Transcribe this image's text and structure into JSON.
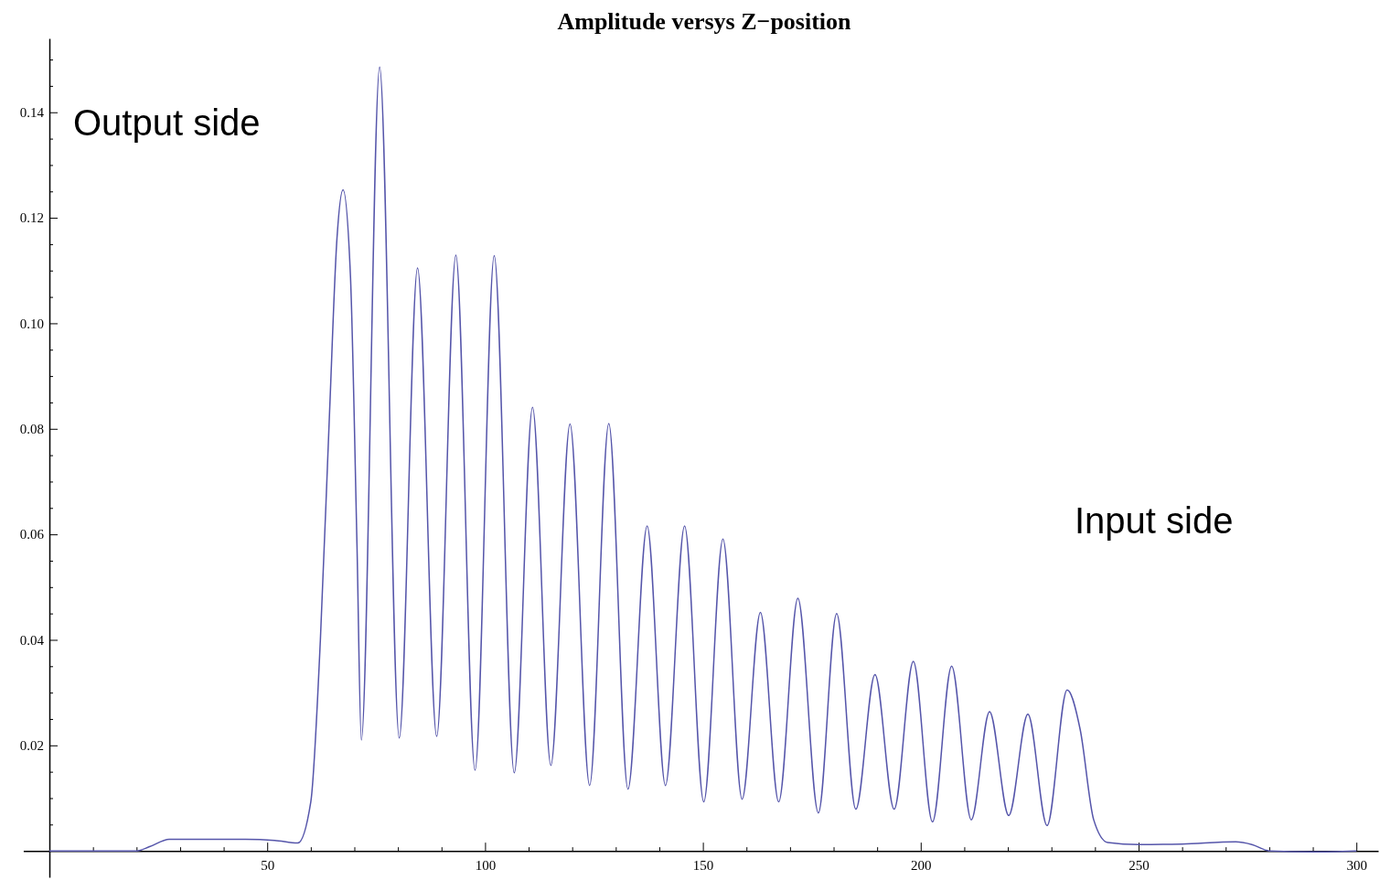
{
  "chart_data": {
    "type": "line",
    "title": "Amplitude versys Z−position",
    "xlim": [
      -6,
      305
    ],
    "ylim": [
      -0.005,
      0.154
    ],
    "xticks": [
      {
        "value": 10,
        "label": null
      },
      {
        "value": 20,
        "label": null
      },
      {
        "value": 30,
        "label": null
      },
      {
        "value": 40,
        "label": null
      },
      50,
      {
        "value": 60,
        "label": null
      },
      {
        "value": 70,
        "label": null
      },
      {
        "value": 80,
        "label": null
      },
      {
        "value": 90,
        "label": null
      },
      100,
      {
        "value": 110,
        "label": null
      },
      {
        "value": 120,
        "label": null
      },
      {
        "value": 130,
        "label": null
      },
      {
        "value": 140,
        "label": null
      },
      150,
      {
        "value": 160,
        "label": null
      },
      {
        "value": 170,
        "label": null
      },
      {
        "value": 180,
        "label": null
      },
      {
        "value": 190,
        "label": null
      },
      200,
      {
        "value": 210,
        "label": null
      },
      {
        "value": 220,
        "label": null
      },
      {
        "value": 230,
        "label": null
      },
      {
        "value": 240,
        "label": null
      },
      250,
      {
        "value": 260,
        "label": null
      },
      {
        "value": 270,
        "label": null
      },
      {
        "value": 280,
        "label": null
      },
      {
        "value": 290,
        "label": null
      },
      300
    ],
    "yticks": [
      {
        "value": 0.005,
        "label": null
      },
      {
        "value": 0.01,
        "label": null
      },
      {
        "value": 0.015,
        "label": null
      },
      {
        "value": 0.02,
        "label": "0.02"
      },
      {
        "value": 0.025,
        "label": null
      },
      {
        "value": 0.03,
        "label": null
      },
      {
        "value": 0.035,
        "label": null
      },
      {
        "value": 0.04,
        "label": "0.04"
      },
      {
        "value": 0.045,
        "label": null
      },
      {
        "value": 0.05,
        "label": null
      },
      {
        "value": 0.055,
        "label": null
      },
      {
        "value": 0.06,
        "label": "0.06"
      },
      {
        "value": 0.065,
        "label": null
      },
      {
        "value": 0.07,
        "label": null
      },
      {
        "value": 0.075,
        "label": null
      },
      {
        "value": 0.08,
        "label": "0.08"
      },
      {
        "value": 0.085,
        "label": null
      },
      {
        "value": 0.09,
        "label": null
      },
      {
        "value": 0.095,
        "label": null
      },
      {
        "value": 0.1,
        "label": "0.10"
      },
      {
        "value": 0.105,
        "label": null
      },
      {
        "value": 0.11,
        "label": null
      },
      {
        "value": 0.115,
        "label": null
      },
      {
        "value": 0.12,
        "label": "0.12"
      },
      {
        "value": 0.125,
        "label": null
      },
      {
        "value": 0.13,
        "label": null
      },
      {
        "value": 0.135,
        "label": null
      },
      {
        "value": 0.14,
        "label": "0.14"
      },
      {
        "value": 0.145,
        "label": null
      },
      {
        "value": 0.15,
        "label": null
      }
    ],
    "grid": false,
    "marker": "none",
    "line_style": "solid",
    "annotations": [
      "Output side",
      "Input side"
    ],
    "series": [
      {
        "color": "#5555aa",
        "x": [
          0,
          20,
          23,
          27.5,
          35,
          45,
          51.7,
          57,
          60,
          62.2,
          64.3,
          66,
          67.4,
          69.1,
          70.6,
          71.6,
          75.8,
          80.3,
          84.5,
          88.9,
          93.3,
          97.7,
          102.1,
          106.7,
          110.9,
          115.1,
          119.5,
          124,
          128.4,
          132.8,
          137.2,
          141.4,
          145.8,
          150.2,
          154.6,
          159,
          163.2,
          167.4,
          171.8,
          176.5,
          180.7,
          185.1,
          189.5,
          193.9,
          198.3,
          202.7,
          207.1,
          211.6,
          215.8,
          220.2,
          224.6,
          229,
          233.6,
          236.6,
          239.7,
          242.9,
          250,
          260,
          272.3,
          276,
          280,
          290,
          300
        ],
        "values": [
          0,
          0,
          0.0008,
          0.0022,
          0.0022,
          0.0022,
          0.002,
          0.0015,
          0.0093,
          0.04,
          0.083,
          0.116,
          0.1253,
          0.109,
          0.058,
          0.021,
          0.1486,
          0.0214,
          0.1105,
          0.0217,
          0.1129,
          0.0153,
          0.1128,
          0.0148,
          0.0841,
          0.0162,
          0.0809,
          0.0124,
          0.081,
          0.0117,
          0.0616,
          0.0124,
          0.0616,
          0.0093,
          0.0591,
          0.0098,
          0.0452,
          0.0093,
          0.0479,
          0.0072,
          0.045,
          0.0079,
          0.0334,
          0.0079,
          0.0359,
          0.0055,
          0.035,
          0.0059,
          0.0264,
          0.0067,
          0.0259,
          0.0048,
          0.0305,
          0.023,
          0.0059,
          0.0016,
          0.0012,
          0.0013,
          0.0017,
          0.0012,
          0,
          -0.0002,
          0
        ]
      }
    ]
  }
}
